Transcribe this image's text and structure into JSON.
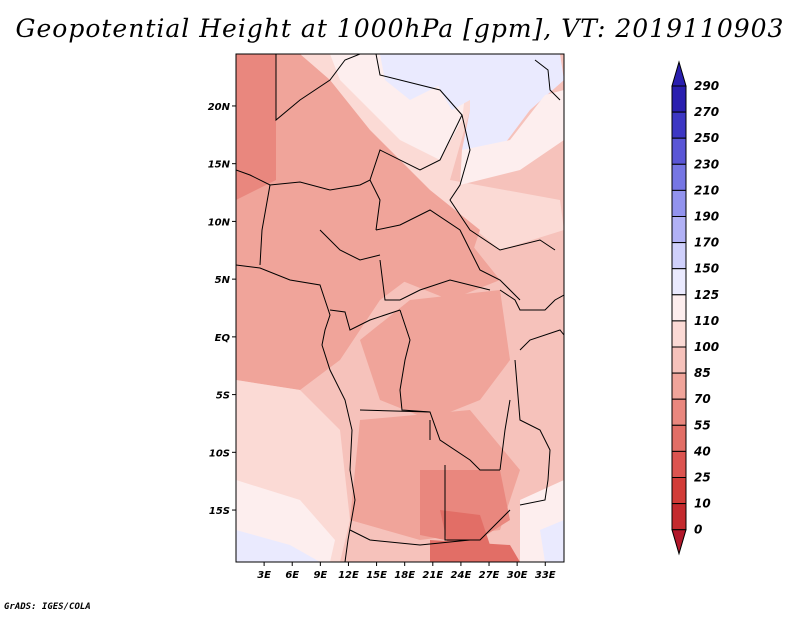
{
  "chart_data": {
    "type": "heatmap",
    "title": "Geopotential Height at 1000hPa [gpm], VT: 2019110903",
    "variable": "Geopotential Height",
    "level": "1000hPa",
    "units": "gpm",
    "valid_time": "2019110903",
    "x_ticks": [
      "3E",
      "6E",
      "9E",
      "12E",
      "15E",
      "18E",
      "21E",
      "24E",
      "27E",
      "30E",
      "33E"
    ],
    "y_ticks": [
      "20N",
      "15N",
      "10N",
      "5N",
      "EQ",
      "5S",
      "10S",
      "15S"
    ],
    "lon_range": [
      0,
      35
    ],
    "lat_range": [
      -19.5,
      24.5
    ],
    "colorbar_levels": [
      0,
      10,
      25,
      40,
      55,
      70,
      85,
      100,
      110,
      125,
      150,
      170,
      190,
      210,
      230,
      250,
      270,
      290
    ],
    "colorbar_colors": [
      "#b2182b",
      "#c42a2e",
      "#d23c38",
      "#dc5450",
      "#e26e66",
      "#e9877e",
      "#f0a49a",
      "#f6c2bb",
      "#fbdad5",
      "#fdeeee",
      "#eaeafe",
      "#cfd0fb",
      "#b1b1f5",
      "#9293ee",
      "#7676e4",
      "#5a56d6",
      "#3d37c4",
      "#2a1faf"
    ],
    "colorbar_extend": "both"
  },
  "credit": "GrADS: IGES/COLA"
}
